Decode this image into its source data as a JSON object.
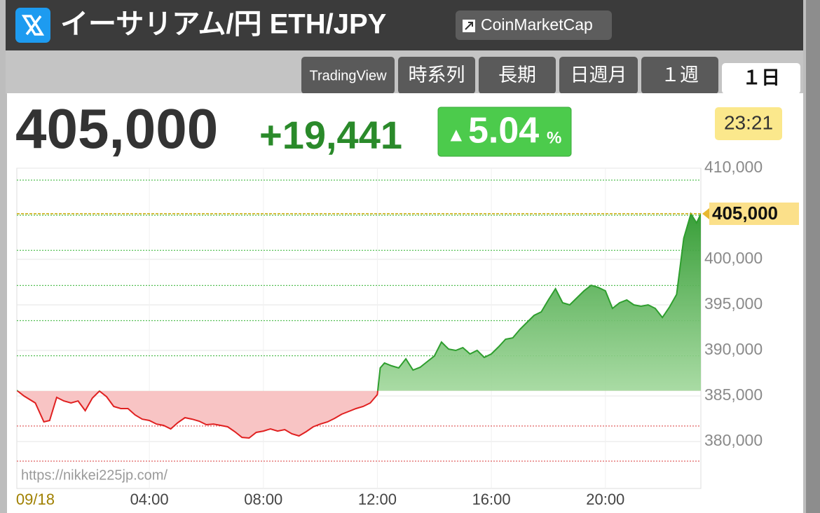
{
  "header": {
    "title": "イーサリアム/円 ETH/JPY",
    "source_button": "CoinMarketCap",
    "tabs": [
      "TradingView",
      "時系列",
      "長期",
      "日週月",
      "１週",
      "１日"
    ],
    "active_tab": 5,
    "change": "+19,441",
    "change_pct_arrow": "▲",
    "change_pct": "5.04",
    "change_pct_unit": "%",
    "time": "23:21",
    "watermark": "https://nikkei225jp.com/"
  },
  "chart_data": {
    "type": "line",
    "up_color": "#2e9e2e",
    "down_color": "#e02020",
    "previous_close": 385559,
    "last": {
      "value": 405000,
      "label": "405,000"
    },
    "reference_lines": [
      377848,
      381703,
      389415,
      393270,
      397126,
      400981,
      404837,
      408692
    ],
    "xlim": [
      -0.65,
      23.35
    ],
    "xticks": [
      {
        "value": 0,
        "label": "09/18"
      },
      {
        "value": 4,
        "label": "04:00"
      },
      {
        "value": 8,
        "label": "08:00"
      },
      {
        "value": 12,
        "label": "12:00"
      },
      {
        "value": 16,
        "label": "16:00"
      },
      {
        "value": 20,
        "label": "20:00"
      }
    ],
    "ylim": [
      374850,
      410000
    ],
    "yticks": [
      {
        "value": 380000,
        "label": "380,000"
      },
      {
        "value": 385000,
        "label": "385,000"
      },
      {
        "value": 390000,
        "label": "390,000"
      },
      {
        "value": 395000,
        "label": "395,000"
      },
      {
        "value": 400000,
        "label": "400,000"
      },
      {
        "value": 410000,
        "label": "410,000"
      }
    ],
    "grid": true,
    "x": [
      -0.65,
      -0.4,
      0,
      0.3,
      0.5,
      0.75,
      1,
      1.25,
      1.5,
      1.75,
      2,
      2.25,
      2.5,
      2.75,
      3,
      3.25,
      3.5,
      3.75,
      4,
      4.25,
      4.5,
      4.75,
      5,
      5.25,
      5.5,
      5.75,
      6,
      6.25,
      6.5,
      6.75,
      7,
      7.25,
      7.5,
      7.75,
      8,
      8.25,
      8.5,
      8.75,
      9,
      9.25,
      9.5,
      9.75,
      10,
      10.25,
      10.5,
      10.75,
      11,
      11.25,
      11.5,
      11.75,
      12,
      12.1,
      12.25,
      12.5,
      12.75,
      13,
      13.25,
      13.5,
      13.75,
      14,
      14.25,
      14.5,
      14.75,
      15,
      15.25,
      15.5,
      15.75,
      16,
      16.25,
      16.5,
      16.75,
      17,
      17.25,
      17.5,
      17.75,
      18,
      18.25,
      18.5,
      18.75,
      19,
      19.25,
      19.5,
      19.75,
      20,
      20.25,
      20.5,
      20.75,
      21,
      21.25,
      21.5,
      21.75,
      22,
      22.25,
      22.5,
      22.75,
      23,
      23.2,
      23.35
    ],
    "values": [
      385620,
      385000,
      384230,
      382160,
      382310,
      384850,
      384460,
      384230,
      384460,
      383390,
      384770,
      385540,
      384920,
      383850,
      383620,
      383620,
      382920,
      382460,
      382310,
      381920,
      381770,
      381390,
      382080,
      382620,
      382460,
      382230,
      381850,
      381920,
      381770,
      381620,
      381080,
      380460,
      380390,
      381000,
      381150,
      381390,
      381150,
      381310,
      380850,
      380620,
      381080,
      381620,
      381920,
      382160,
      382540,
      383000,
      383310,
      383620,
      383850,
      384230,
      385150,
      388080,
      388620,
      388310,
      388080,
      389080,
      387850,
      388150,
      388770,
      389390,
      390920,
      390150,
      390000,
      390310,
      389620,
      390000,
      389230,
      389620,
      390390,
      391230,
      391380,
      392310,
      393080,
      393850,
      394230,
      395540,
      396770,
      395230,
      395000,
      395770,
      396540,
      397150,
      396920,
      396540,
      394620,
      395230,
      395540,
      395000,
      394850,
      395000,
      394620,
      393620,
      394770,
      396150,
      402310,
      405000,
      404000,
      405000
    ]
  }
}
